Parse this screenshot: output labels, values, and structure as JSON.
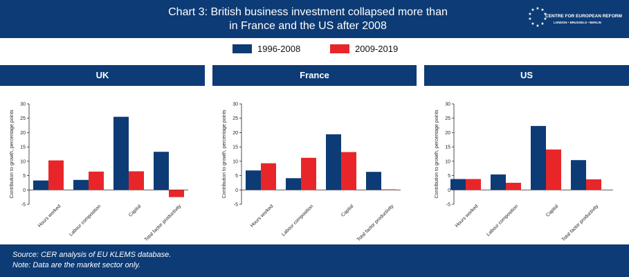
{
  "header": {
    "title_line1": "Chart 3: British business investment collapsed more than",
    "title_line2": "in France and the US after 2008",
    "logo_name": "CENTRE FOR EUROPEAN REFORM",
    "logo_sub": "LONDON • BRUSSELS • BERLIN"
  },
  "legend": [
    {
      "label": "1996-2008",
      "color": "#0d3b75"
    },
    {
      "label": "2009-2019",
      "color": "#e8262a"
    }
  ],
  "footer": {
    "source": "Source: CER analysis of EU KLEMS database.",
    "note": "Note: Data are the market sector only."
  },
  "chart_data": [
    {
      "type": "bar",
      "title": "UK",
      "ylabel": "Contribution to growth, percentage points",
      "ylim": [
        -5,
        30
      ],
      "yticks": [
        -5,
        0,
        5,
        10,
        15,
        20,
        25,
        30
      ],
      "categories": [
        "Hours worked",
        "Labour composition",
        "Capital",
        "Total factor productivity"
      ],
      "series": [
        {
          "name": "1996-2008",
          "values": [
            3.3,
            3.5,
            25.5,
            13.3
          ]
        },
        {
          "name": "2009-2019",
          "values": [
            10.3,
            6.4,
            6.5,
            -2.5
          ]
        }
      ]
    },
    {
      "type": "bar",
      "title": "France",
      "ylabel": "Contribution to growth, percentage points",
      "ylim": [
        -5,
        30
      ],
      "yticks": [
        -5,
        0,
        5,
        10,
        15,
        20,
        25,
        30
      ],
      "categories": [
        "Hours worked",
        "Labour composition",
        "Capital",
        "Total factor productivity"
      ],
      "series": [
        {
          "name": "1996-2008",
          "values": [
            6.8,
            4.1,
            19.4,
            6.3
          ]
        },
        {
          "name": "2009-2019",
          "values": [
            9.3,
            11.2,
            13.2,
            0.2
          ]
        }
      ]
    },
    {
      "type": "bar",
      "title": "US",
      "ylabel": "Contribution to growth, percentage points",
      "ylim": [
        -5,
        30
      ],
      "yticks": [
        -5,
        0,
        5,
        10,
        15,
        20,
        25,
        30
      ],
      "categories": [
        "Hours worked",
        "Labour composition",
        "Capital",
        "Total factor productivity"
      ],
      "series": [
        {
          "name": "1996-2008",
          "values": [
            3.8,
            5.4,
            22.3,
            10.4
          ]
        },
        {
          "name": "2009-2019",
          "values": [
            3.8,
            2.5,
            14.1,
            3.7
          ]
        }
      ]
    }
  ]
}
